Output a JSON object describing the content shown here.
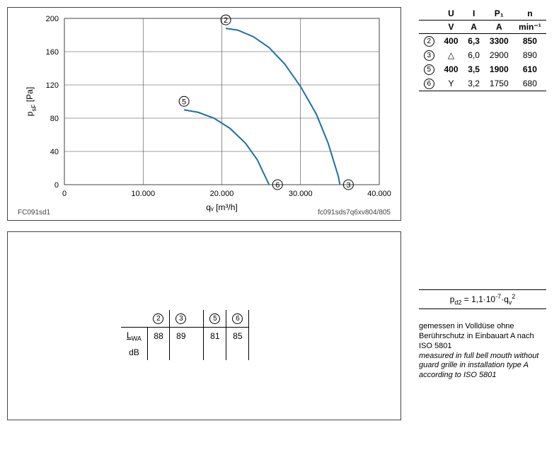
{
  "chart": {
    "type": "line",
    "xlabel": "qᵥ [m³/h]",
    "ylabel": "p_sF [Pa]",
    "xlim": [
      0,
      40000
    ],
    "ylim": [
      0,
      200
    ],
    "xticks": [
      0,
      10000,
      20000,
      30000,
      40000
    ],
    "xtick_labels": [
      "0",
      "10.000",
      "20.000",
      "30.000",
      "40.000"
    ],
    "yticks": [
      0,
      40,
      80,
      120,
      160,
      200
    ],
    "grid_color": "#444444",
    "background": "#ffffff",
    "curves": [
      {
        "id": "2",
        "end_id": "3",
        "color": "#1d71a5",
        "points": [
          [
            20500,
            188
          ],
          [
            22000,
            186
          ],
          [
            24000,
            178
          ],
          [
            26000,
            165
          ],
          [
            28000,
            145
          ],
          [
            30000,
            118
          ],
          [
            32000,
            85
          ],
          [
            33500,
            50
          ],
          [
            34800,
            10
          ],
          [
            35000,
            0
          ]
        ]
      },
      {
        "id": "5",
        "end_id": "6",
        "color": "#1d71a5",
        "points": [
          [
            15200,
            90
          ],
          [
            17000,
            87
          ],
          [
            19000,
            80
          ],
          [
            21000,
            68
          ],
          [
            23000,
            50
          ],
          [
            24500,
            30
          ],
          [
            25500,
            10
          ],
          [
            26000,
            0
          ]
        ]
      }
    ],
    "footer_left": "FC091sd1",
    "footer_right": "fc091sds7q6xv804/805"
  },
  "spec_table": {
    "headers": [
      "U",
      "I",
      "P₁",
      "n"
    ],
    "units": [
      "V",
      "A",
      "A",
      "min⁻¹"
    ],
    "rows": [
      {
        "id": "2",
        "sym": "400",
        "i": "6,3",
        "p": "3300",
        "n": "850",
        "bold": true
      },
      {
        "id": "3",
        "sym": "△",
        "i": "6,0",
        "p": "2900",
        "n": "890",
        "bold": false
      },
      {
        "id": "5",
        "sym": "400",
        "i": "3,5",
        "p": "1900",
        "n": "610",
        "bold": true
      },
      {
        "id": "6",
        "sym": "Y",
        "i": "3,2",
        "p": "1750",
        "n": "680",
        "bold": false
      }
    ]
  },
  "formula": "p_d2 = 1,1·10⁻⁷·qᵥ²",
  "note_de": "gemessen in Volldüse ohne Berührschutz in Einbauart A nach ISO 5801",
  "note_en": "measured in full bell mouth without guard grille in installation type A according to ISO 5801",
  "lwa": {
    "label": "L_WA",
    "unit": "dB",
    "cols": [
      "2",
      "3",
      "5",
      "6"
    ],
    "values": [
      "88",
      "89",
      "81",
      "85"
    ]
  }
}
